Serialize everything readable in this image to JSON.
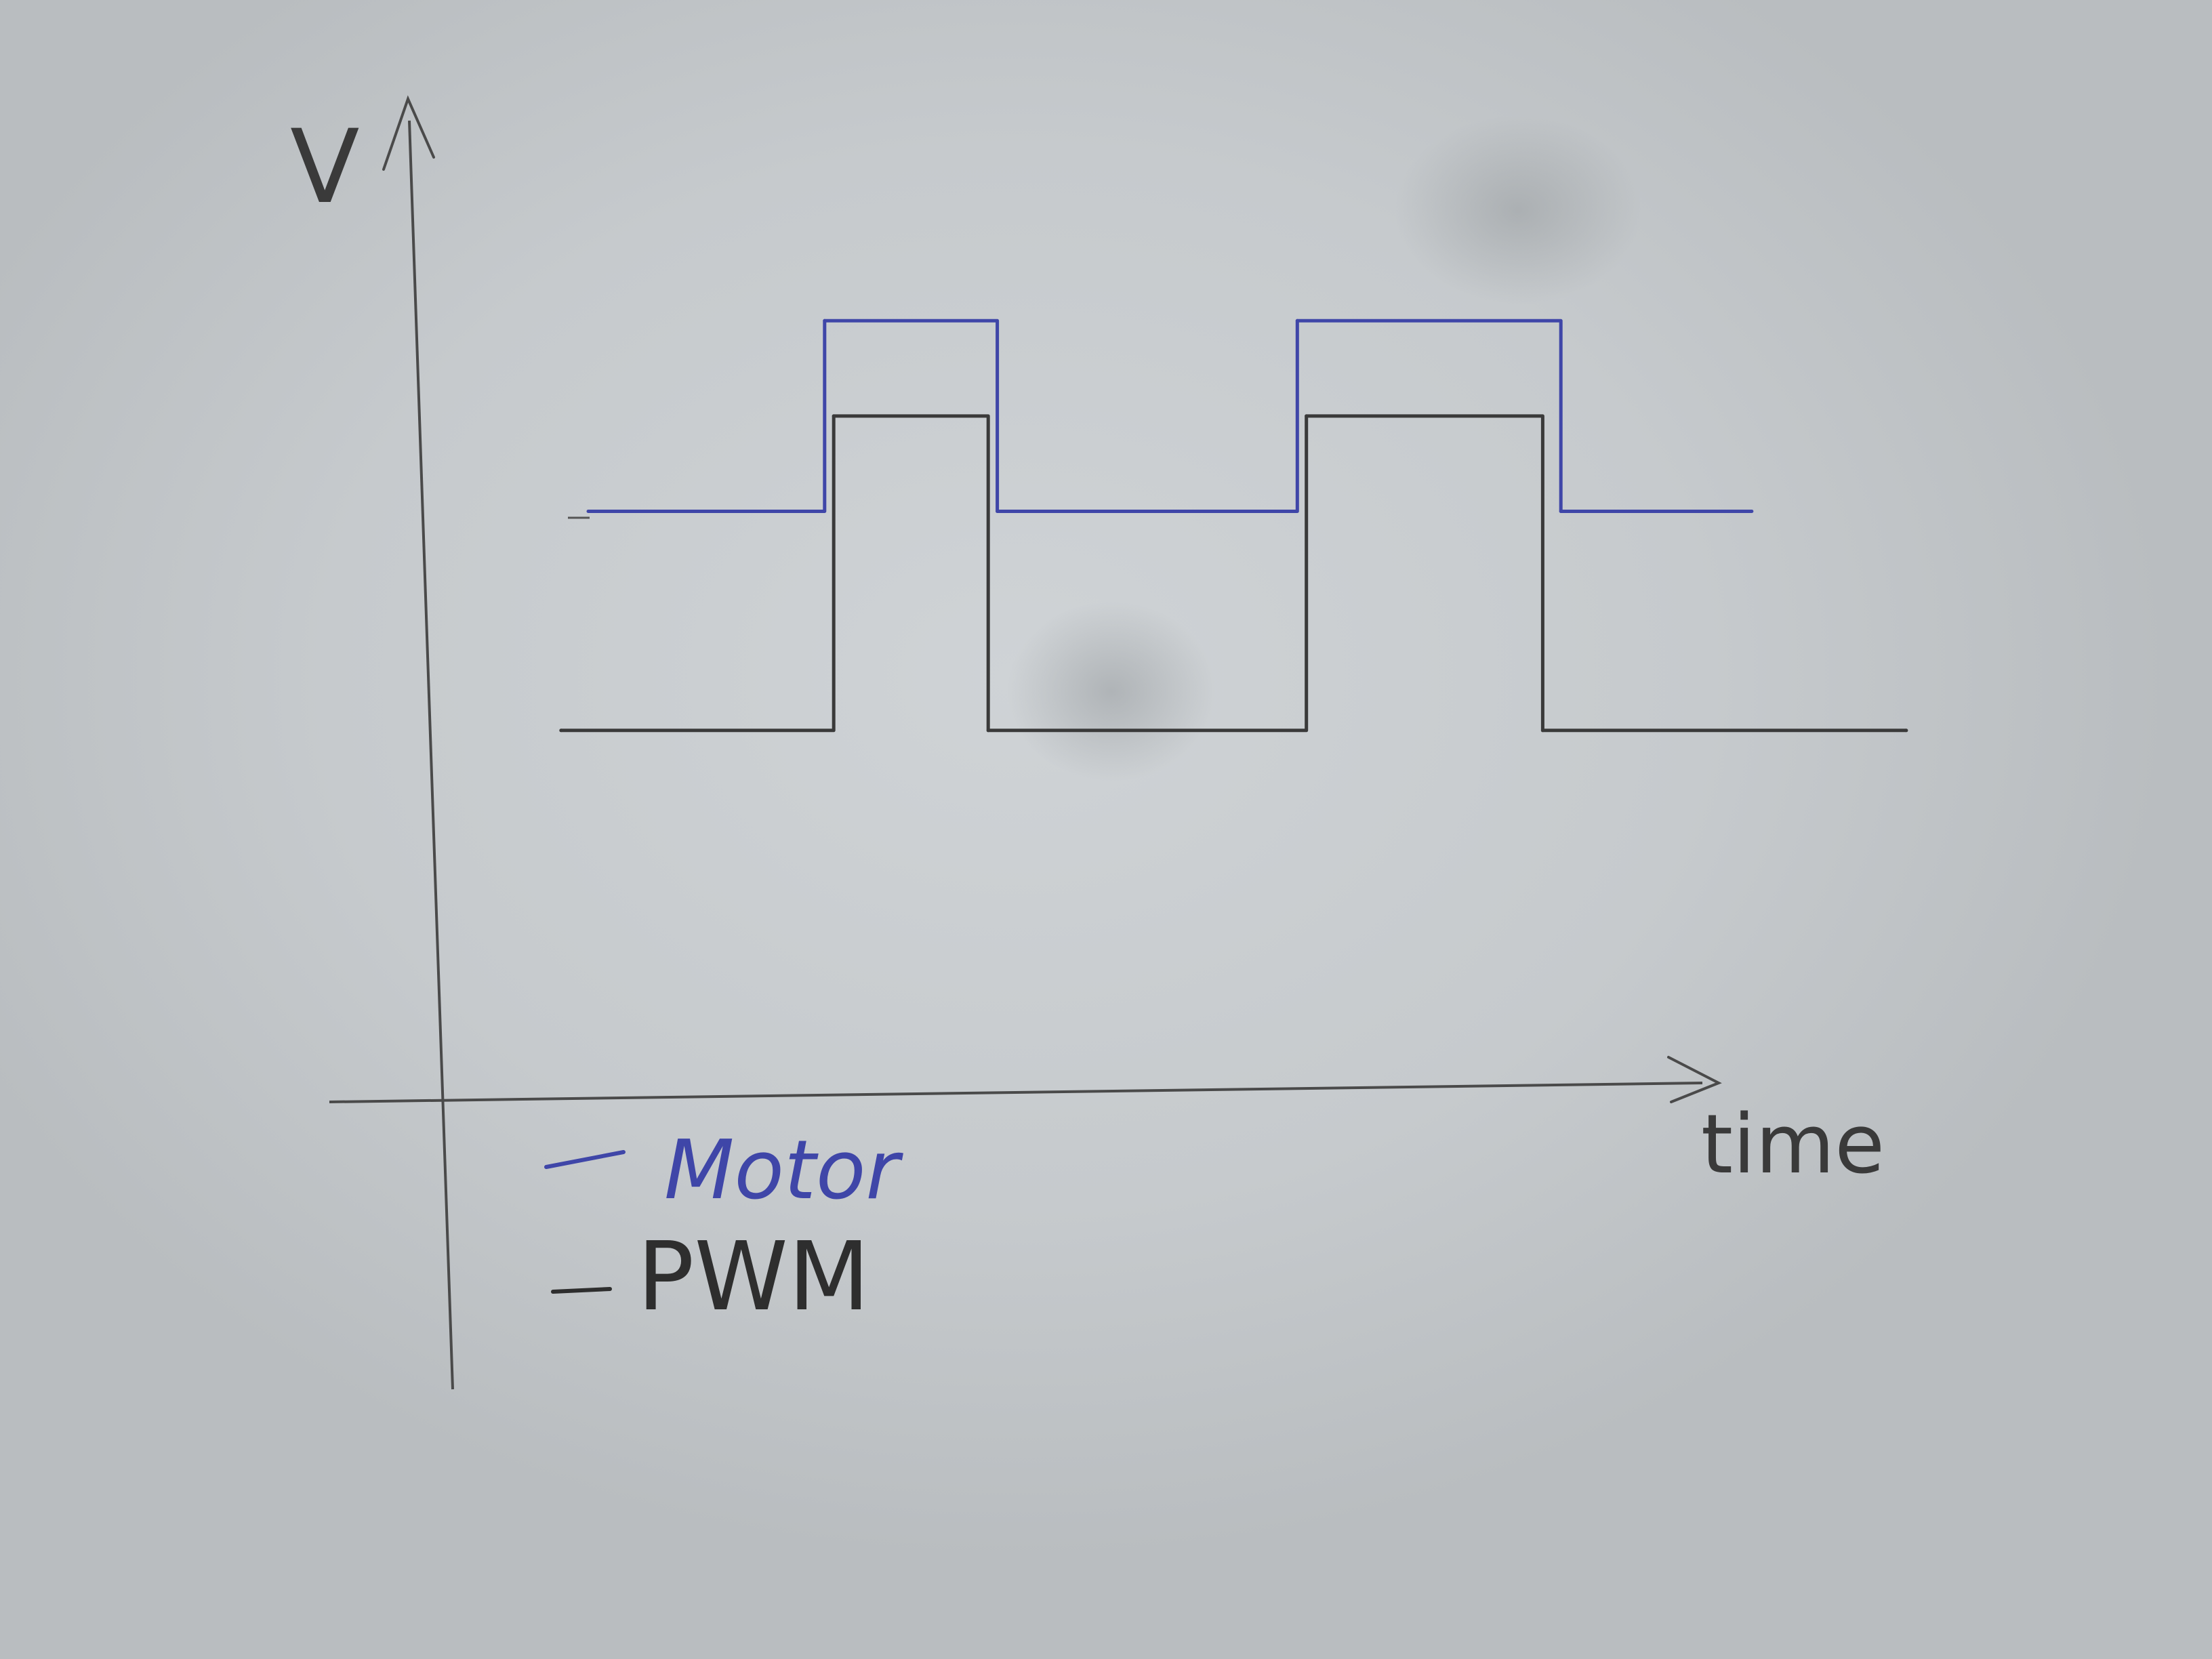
{
  "chart_data": {
    "type": "line",
    "step": true,
    "xlabel": "time",
    "ylabel": "V",
    "x": [
      0,
      3.2,
      5.0,
      8.4,
      11.0,
      15.0
    ],
    "series": [
      {
        "name": "Motor",
        "color": "#3f46a8",
        "x": [
          0.5,
          3.1,
          5.0,
          8.3,
          11.2,
          13.3
        ],
        "values": [
          3.3,
          5.3,
          3.3,
          5.3,
          3.3,
          3.3
        ]
      },
      {
        "name": "PWM",
        "color": "#3a3a3a",
        "x": [
          0.2,
          3.2,
          4.9,
          8.4,
          11.0,
          15.0
        ],
        "values": [
          1.0,
          4.3,
          1.0,
          4.3,
          1.0,
          1.0
        ]
      }
    ],
    "xlim": [
      -1.2,
      15.5
    ],
    "ylim": [
      -2.8,
      7.6
    ],
    "grid": false,
    "legend": "bottom-left"
  }
}
